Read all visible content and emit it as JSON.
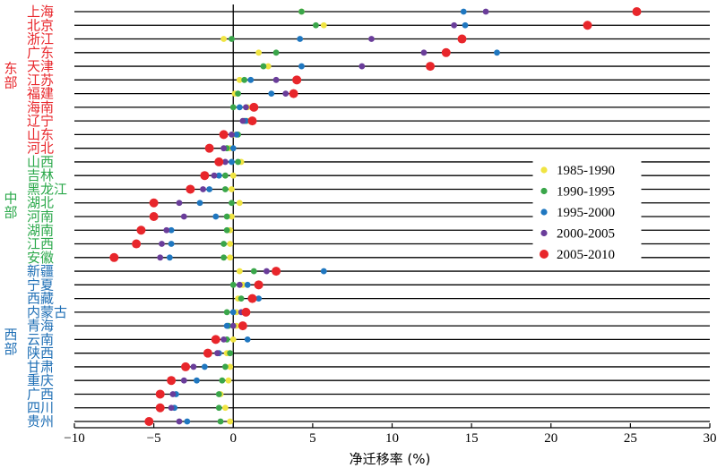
{
  "chart_data": {
    "type": "scatter",
    "xlabel": "净迁移率 (%)",
    "xlim": [
      -10,
      30
    ],
    "xticks": [
      -10,
      -5,
      0,
      5,
      10,
      15,
      20,
      25,
      30
    ],
    "grid": "horizontal row lines",
    "legend_position": "right",
    "colors": {
      "east": "#e8262b",
      "central": "#2aa84a",
      "west": "#1f6fb5",
      "axis": "#000000"
    },
    "series": [
      {
        "name": "1985-1990",
        "color": "#f0e442"
      },
      {
        "name": "1990-1995",
        "color": "#3aa64a"
      },
      {
        "name": "1995-2000",
        "color": "#1f77c0"
      },
      {
        "name": "2000-2005",
        "color": "#6a3d9a"
      },
      {
        "name": "2005-2010",
        "color": "#e8262b"
      }
    ],
    "regions": [
      {
        "label": "东部",
        "group": "east"
      },
      {
        "label": "中部",
        "group": "central"
      },
      {
        "label": "西部",
        "group": "west"
      }
    ],
    "rows": [
      {
        "name": "上海",
        "group": "east",
        "values": [
          4.3,
          4.3,
          14.5,
          15.9,
          25.4
        ]
      },
      {
        "name": "北京",
        "group": "east",
        "values": [
          5.7,
          5.2,
          14.6,
          13.9,
          22.3
        ]
      },
      {
        "name": "浙江",
        "group": "east",
        "values": [
          -0.6,
          -0.1,
          4.2,
          8.7,
          14.4
        ]
      },
      {
        "name": "广东",
        "group": "east",
        "values": [
          1.6,
          2.7,
          16.6,
          12.0,
          13.4
        ]
      },
      {
        "name": "天津",
        "group": "east",
        "values": [
          2.2,
          1.9,
          4.3,
          8.1,
          12.4
        ]
      },
      {
        "name": "江苏",
        "group": "east",
        "values": [
          0.4,
          0.7,
          1.1,
          2.7,
          4.0
        ]
      },
      {
        "name": "福建",
        "group": "east",
        "values": [
          0.1,
          0.3,
          2.4,
          3.3,
          3.8
        ]
      },
      {
        "name": "海南",
        "group": "east",
        "values": [
          0.9,
          0.0,
          0.4,
          0.8,
          1.3
        ]
      },
      {
        "name": "辽宁",
        "group": "east",
        "values": [
          0.9,
          0.7,
          0.8,
          0.6,
          1.2
        ]
      },
      {
        "name": "山东",
        "group": "east",
        "values": [
          0.0,
          0.3,
          0.2,
          -0.1,
          -0.6
        ]
      },
      {
        "name": "河北",
        "group": "east",
        "values": [
          -0.2,
          -0.4,
          0.0,
          -0.6,
          -1.5
        ]
      },
      {
        "name": "山西",
        "group": "central",
        "values": [
          0.5,
          0.3,
          -0.1,
          -0.5,
          -0.9
        ]
      },
      {
        "name": "吉林",
        "group": "central",
        "values": [
          0.0,
          -0.5,
          -0.9,
          -1.2,
          -1.8
        ]
      },
      {
        "name": "黑龙江",
        "group": "central",
        "values": [
          -0.1,
          -0.5,
          -1.5,
          -1.9,
          -2.7
        ]
      },
      {
        "name": "湖北",
        "group": "central",
        "values": [
          0.4,
          -0.1,
          -2.1,
          -3.4,
          -5.0
        ]
      },
      {
        "name": "河南",
        "group": "central",
        "values": [
          -0.1,
          -0.4,
          -1.1,
          -3.1,
          -5.0
        ]
      },
      {
        "name": "湖南",
        "group": "central",
        "values": [
          -0.2,
          -0.4,
          -3.9,
          -4.2,
          -5.8
        ]
      },
      {
        "name": "江西",
        "group": "central",
        "values": [
          -0.2,
          -0.6,
          -3.9,
          -4.5,
          -6.1
        ]
      },
      {
        "name": "安徽",
        "group": "central",
        "values": [
          -0.2,
          -0.6,
          -4.0,
          -4.6,
          -7.5
        ]
      },
      {
        "name": "新疆",
        "group": "west",
        "values": [
          0.4,
          1.3,
          5.7,
          2.1,
          2.7
        ]
      },
      {
        "name": "宁夏",
        "group": "west",
        "values": [
          0.6,
          0.0,
          0.9,
          0.4,
          1.6
        ]
      },
      {
        "name": "西藏",
        "group": "west",
        "values": [
          0.3,
          0.5,
          1.6,
          1.1,
          1.2
        ]
      },
      {
        "name": "内蒙古",
        "group": "west",
        "values": [
          0.2,
          -0.4,
          0.0,
          0.5,
          0.8
        ]
      },
      {
        "name": "青海",
        "group": "west",
        "values": [
          0.2,
          -0.3,
          -0.4,
          0.0,
          0.6
        ]
      },
      {
        "name": "云南",
        "group": "west",
        "values": [
          0.0,
          -0.4,
          0.9,
          -0.6,
          -1.1
        ]
      },
      {
        "name": "陕西",
        "group": "west",
        "values": [
          -0.4,
          -0.2,
          -0.9,
          -1.0,
          -1.6
        ]
      },
      {
        "name": "甘肃",
        "group": "west",
        "values": [
          -0.2,
          -0.5,
          -1.8,
          -2.5,
          -3.0
        ]
      },
      {
        "name": "重庆",
        "group": "west",
        "values": [
          -0.3,
          -0.7,
          -2.3,
          -3.1,
          -3.9
        ]
      },
      {
        "name": "广西",
        "group": "west",
        "values": [
          -0.8,
          -0.9,
          -3.6,
          -3.8,
          -4.6
        ]
      },
      {
        "name": "四川",
        "group": "west",
        "values": [
          -0.5,
          -0.9,
          -3.7,
          -3.9,
          -4.6
        ]
      },
      {
        "name": "贵州",
        "group": "west",
        "values": [
          -0.2,
          -0.8,
          -2.9,
          -3.4,
          -5.3
        ]
      }
    ]
  }
}
